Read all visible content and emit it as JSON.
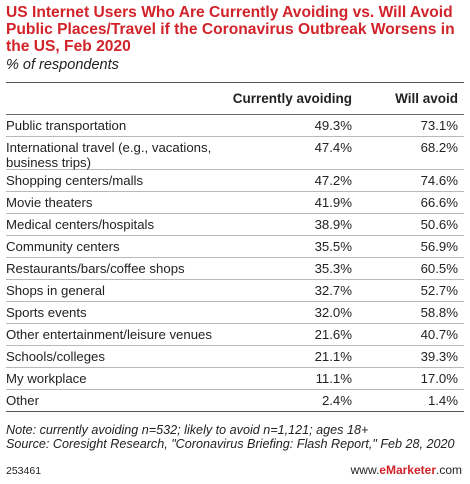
{
  "title": "US Internet Users Who Are Currently Avoiding vs. Will Avoid Public Places/Travel if the Coronavirus Outbreak Worsens in the US, Feb 2020",
  "subtitle": "% of respondents",
  "headers": {
    "col1": "Currently avoiding",
    "col2": "Will avoid"
  },
  "chart_data": {
    "type": "table",
    "title": "US Internet Users Who Are Currently Avoiding vs. Will Avoid Public Places/Travel if the Coronavirus Outbreak Worsens in the US, Feb 2020",
    "subtitle": "% of respondents",
    "columns": [
      "Currently avoiding",
      "Will avoid"
    ],
    "rows": [
      {
        "label": "Public transportation",
        "current": "49.3%",
        "will": "73.1%"
      },
      {
        "label": "International travel (e.g., vacations, business trips)",
        "current": "47.4%",
        "will": "68.2%"
      },
      {
        "label": "Shopping centers/malls",
        "current": "47.2%",
        "will": "74.6%"
      },
      {
        "label": "Movie theaters",
        "current": "41.9%",
        "will": "66.6%"
      },
      {
        "label": "Medical centers/hospitals",
        "current": "38.9%",
        "will": "50.6%"
      },
      {
        "label": "Community centers",
        "current": "35.5%",
        "will": "56.9%"
      },
      {
        "label": "Restaurants/bars/coffee shops",
        "current": "35.3%",
        "will": "60.5%"
      },
      {
        "label": "Shops in general",
        "current": "32.7%",
        "will": "52.7%"
      },
      {
        "label": "Sports events",
        "current": "32.0%",
        "will": "58.8%"
      },
      {
        "label": "Other entertainment/leisure venues",
        "current": "21.6%",
        "will": "40.7%"
      },
      {
        "label": "Schools/colleges",
        "current": "21.1%",
        "will": "39.3%"
      },
      {
        "label": "My workplace",
        "current": "11.1%",
        "will": "17.0%"
      },
      {
        "label": "Other",
        "current": "2.4%",
        "will": "1.4%"
      }
    ]
  },
  "note": "Note: currently avoiding n=532; likely to avoid n=1,121; ages 18+",
  "source": "Source: Coresight Research, \"Coronavirus Briefing: Flash Report,\" Feb 28, 2020",
  "footer": {
    "id": "253461",
    "brand_prefix": "www.",
    "brand_name": "eMarketer",
    "brand_suffix": ".com"
  }
}
